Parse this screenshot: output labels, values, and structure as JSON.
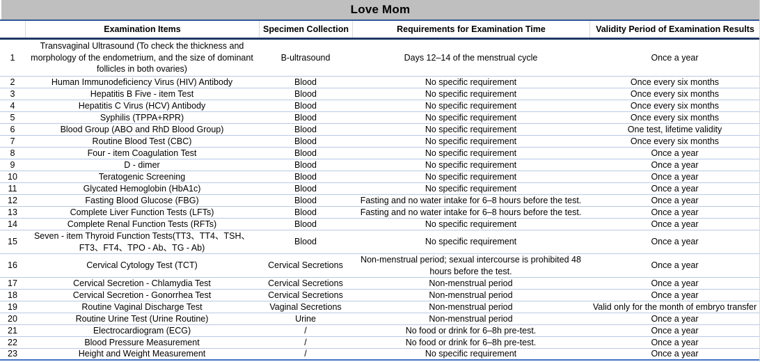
{
  "title": "Love Mom",
  "columns": {
    "c0": "",
    "c1": "Examination Items",
    "c2": "Specimen Collection",
    "c3": "Requirements for Examination Time",
    "c4": "Validity Period of Examination Results"
  },
  "colors": {
    "title_bg": "#bfbfbf",
    "title_border": "#2e5596",
    "header_border": "#1f3864",
    "row_line": "#b8c9e4",
    "bottom_border": "#4472c4",
    "text": "#000000"
  },
  "rows": [
    {
      "no": "1",
      "lines": 3,
      "item": "Transvaginal Ultrasound (To check the thickness and morphology of the endometrium, and the size of dominant follicles in both ovaries)",
      "specimen": "B-ultrasound",
      "requirement": "Days 12–14 of the menstrual cycle",
      "validity": "Once a year"
    },
    {
      "no": "2",
      "lines": 1,
      "item": "Human Immunodeficiency Virus (HIV) Antibody",
      "specimen": "Blood",
      "requirement": "No specific requirement",
      "validity": "Once every six months"
    },
    {
      "no": "3",
      "lines": 1,
      "item": "Hepatitis B Five - item Test",
      "specimen": "Blood",
      "requirement": "No specific requirement",
      "validity": "Once every six months"
    },
    {
      "no": "4",
      "lines": 1,
      "item": "Hepatitis C Virus (HCV) Antibody",
      "specimen": "Blood",
      "requirement": "No specific requirement",
      "validity": "Once every six months"
    },
    {
      "no": "5",
      "lines": 1,
      "item": "Syphilis (TPPA+RPR)",
      "specimen": "Blood",
      "requirement": "No specific requirement",
      "validity": "Once every six months"
    },
    {
      "no": "6",
      "lines": 1,
      "item": "Blood Group (ABO and RhD Blood Group)",
      "specimen": "Blood",
      "requirement": "No specific requirement",
      "validity": "One test, lifetime validity"
    },
    {
      "no": "7",
      "lines": 1,
      "item": "Routine Blood Test (CBC)",
      "specimen": "Blood",
      "requirement": "No specific requirement",
      "validity": "Once every six months"
    },
    {
      "no": "8",
      "lines": 1,
      "item": "Four - item Coagulation Test",
      "specimen": "Blood",
      "requirement": "No specific requirement",
      "validity": "Once a year"
    },
    {
      "no": "9",
      "lines": 1,
      "item": "D - dimer",
      "specimen": "Blood",
      "requirement": "No specific requirement",
      "validity": "Once a year"
    },
    {
      "no": "10",
      "lines": 1,
      "item": "Teratogenic Screening",
      "specimen": "Blood",
      "requirement": "No specific requirement",
      "validity": "Once a year"
    },
    {
      "no": "11",
      "lines": 1,
      "item": "Glycated Hemoglobin (HbA1c)",
      "specimen": "Blood",
      "requirement": "No specific requirement",
      "validity": "Once a year"
    },
    {
      "no": "12",
      "lines": 1,
      "item": "Fasting Blood Glucose (FBG)",
      "specimen": "Blood",
      "requirement": "Fasting and no water intake for 6–8 hours before the test.",
      "validity": "Once a year"
    },
    {
      "no": "13",
      "lines": 1,
      "item": "Complete Liver Function Tests (LFTs)",
      "specimen": "Blood",
      "requirement": "Fasting and no water intake for 6–8 hours before the test.",
      "validity": "Once a year"
    },
    {
      "no": "14",
      "lines": 1,
      "item": "Complete Renal Function Tests (RFTs)",
      "specimen": "Blood",
      "requirement": "No specific requirement",
      "validity": "Once a year"
    },
    {
      "no": "15",
      "lines": 2,
      "item": "Seven - item Thyroid Function Tests(TT3、TT4、TSH、FT3、FT4、TPO - Ab、TG - Ab)",
      "specimen": "Blood",
      "requirement": "No specific requirement",
      "validity": "Once a year"
    },
    {
      "no": "16",
      "lines": 2,
      "item": "Cervical Cytology Test (TCT)",
      "specimen": "Cervical Secretions",
      "requirement": "Non-menstrual period; sexual intercourse is prohibited 48 hours before the test.",
      "validity": "Once a year"
    },
    {
      "no": "17",
      "lines": 1,
      "item": "Cervical Secretion - Chlamydia Test",
      "specimen": "Cervical Secretions",
      "requirement": "Non-menstrual period",
      "validity": "Once a year"
    },
    {
      "no": "18",
      "lines": 1,
      "item": "Cervical Secretion - Gonorrhea Test",
      "specimen": "Cervical Secretions",
      "requirement": "Non-menstrual period",
      "validity": "Once a year"
    },
    {
      "no": "19",
      "lines": 1,
      "item": "Routine Vaginal Discharge Test",
      "specimen": "Vaginal Secretions",
      "requirement": "Non-menstrual period",
      "validity": "Valid only for the month of embryo transfer"
    },
    {
      "no": "20",
      "lines": 1,
      "item": "Routine Urine Test (Urine Routine)",
      "specimen": "Urine",
      "requirement": "Non-menstrual period",
      "validity": "Once a year"
    },
    {
      "no": "21",
      "lines": 1,
      "item": "Electrocardiogram (ECG)",
      "specimen": "/",
      "requirement": "No food or drink for 6–8h pre-test.",
      "validity": "Once a year"
    },
    {
      "no": "22",
      "lines": 1,
      "item": "Blood Pressure Measurement",
      "specimen": "/",
      "requirement": "No food or drink for 6–8h pre-test.",
      "validity": "Once a year"
    },
    {
      "no": "23",
      "lines": 1,
      "item": "Height and Weight Measurement",
      "specimen": "/",
      "requirement": "No specific requirement",
      "validity": "Once a year"
    }
  ]
}
